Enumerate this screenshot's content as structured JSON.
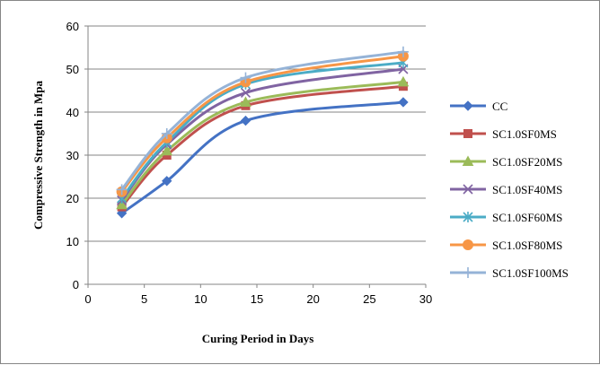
{
  "chart_data": {
    "type": "line",
    "title": "",
    "xlabel": "Curing Period in Days",
    "ylabel": "Compressive Strength in Mpa",
    "xlim": [
      0,
      30
    ],
    "ylim": [
      0,
      60
    ],
    "xticks": [
      0,
      5,
      10,
      15,
      20,
      25,
      30
    ],
    "yticks": [
      0,
      10,
      20,
      30,
      40,
      50,
      60
    ],
    "grid": "horizontal",
    "legend_position": "right",
    "x": [
      3,
      7,
      14,
      28
    ],
    "series": [
      {
        "name": "CC",
        "color": "#4472C4",
        "marker": "diamond",
        "values": [
          16.5,
          24.0,
          38.0,
          42.3
        ]
      },
      {
        "name": "SC1.0SF0MS",
        "color": "#C0504D",
        "marker": "square",
        "values": [
          18.0,
          30.0,
          41.5,
          46.0
        ]
      },
      {
        "name": "SC1.0SF20MS",
        "color": "#9BBB59",
        "marker": "triangle",
        "values": [
          18.5,
          31.0,
          42.3,
          47.0
        ]
      },
      {
        "name": "SC1.0SF40MS",
        "color": "#8064A2",
        "marker": "x",
        "values": [
          19.5,
          32.5,
          44.5,
          50.0
        ]
      },
      {
        "name": "SC1.0SF60MS",
        "color": "#4BACC6",
        "marker": "star",
        "values": [
          20.0,
          33.0,
          46.5,
          51.5
        ]
      },
      {
        "name": "SC1.0SF80MS",
        "color": "#F79646",
        "marker": "circle",
        "values": [
          21.5,
          34.0,
          47.0,
          53.0
        ]
      },
      {
        "name": "SC1.0SF100MS",
        "color": "#95B3D7",
        "marker": "plus",
        "values": [
          22.0,
          35.0,
          48.0,
          54.0
        ]
      }
    ]
  }
}
